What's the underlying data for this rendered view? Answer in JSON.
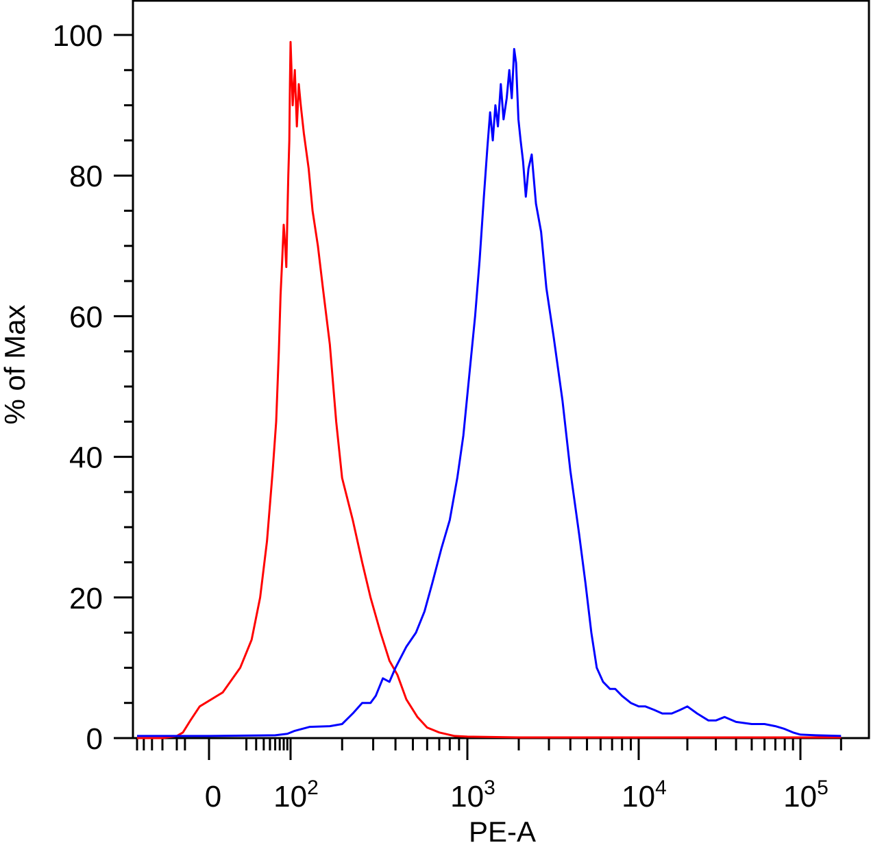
{
  "chart_data": {
    "type": "line",
    "title": "",
    "xlabel": "PE-A",
    "ylabel": "% of Max",
    "x_scale": "biexponential",
    "ylim": [
      0,
      100
    ],
    "y_ticks": [
      {
        "value": 0,
        "label": "0"
      },
      {
        "value": 20,
        "label": "20"
      },
      {
        "value": 40,
        "label": "40"
      },
      {
        "value": 60,
        "label": "60"
      },
      {
        "value": 80,
        "label": "80"
      },
      {
        "value": 100,
        "label": "100"
      }
    ],
    "x_ticks": [
      {
        "value": 0,
        "label": "0",
        "base": "0",
        "exp": ""
      },
      {
        "value": 100,
        "label": "10^2",
        "base": "10",
        "exp": "2"
      },
      {
        "value": 1000,
        "label": "10^3",
        "base": "10",
        "exp": "3"
      },
      {
        "value": 10000,
        "label": "10^4",
        "base": "10",
        "exp": "4"
      },
      {
        "value": 100000,
        "label": "10^5",
        "base": "10",
        "exp": "5"
      }
    ],
    "grid": false,
    "series": [
      {
        "color": "#ff0000",
        "points": [
          [
            -300,
            0
          ],
          [
            -150,
            0
          ],
          [
            -100,
            0.3
          ],
          [
            -60,
            0.8
          ],
          [
            -30,
            2.5
          ],
          [
            -10,
            4.5
          ],
          [
            5,
            6.5
          ],
          [
            15,
            10
          ],
          [
            25,
            14
          ],
          [
            35,
            20
          ],
          [
            45,
            28
          ],
          [
            55,
            38
          ],
          [
            62,
            45
          ],
          [
            68,
            55
          ],
          [
            72,
            63
          ],
          [
            76,
            68
          ],
          [
            80,
            73
          ],
          [
            84,
            70
          ],
          [
            87,
            67
          ],
          [
            90,
            74
          ],
          [
            93,
            80
          ],
          [
            96,
            85
          ],
          [
            98,
            93
          ],
          [
            100,
            99
          ],
          [
            103,
            90
          ],
          [
            106,
            95
          ],
          [
            109,
            87
          ],
          [
            112,
            93
          ],
          [
            115,
            90
          ],
          [
            120,
            86
          ],
          [
            128,
            81
          ],
          [
            135,
            75
          ],
          [
            145,
            70
          ],
          [
            155,
            64
          ],
          [
            170,
            56
          ],
          [
            185,
            45
          ],
          [
            200,
            37
          ],
          [
            230,
            31
          ],
          [
            260,
            25
          ],
          [
            290,
            20
          ],
          [
            330,
            15
          ],
          [
            370,
            11
          ],
          [
            410,
            9
          ],
          [
            460,
            5.5
          ],
          [
            530,
            3
          ],
          [
            600,
            1.5
          ],
          [
            700,
            0.8
          ],
          [
            850,
            0.3
          ],
          [
            1000,
            0.2
          ],
          [
            2000,
            0.1
          ],
          [
            10000,
            0.1
          ],
          [
            100000,
            0.1
          ],
          [
            200000,
            0.1
          ]
        ]
      },
      {
        "color": "#0000ff",
        "points": [
          [
            -300,
            0.3
          ],
          [
            -150,
            0.3
          ],
          [
            0,
            0.3
          ],
          [
            60,
            0.4
          ],
          [
            90,
            0.6
          ],
          [
            105,
            1
          ],
          [
            130,
            1.6
          ],
          [
            170,
            1.7
          ],
          [
            200,
            2
          ],
          [
            230,
            3.5
          ],
          [
            260,
            5
          ],
          [
            290,
            5
          ],
          [
            310,
            6
          ],
          [
            340,
            8.5
          ],
          [
            370,
            8
          ],
          [
            400,
            10
          ],
          [
            460,
            13
          ],
          [
            520,
            15
          ],
          [
            580,
            18
          ],
          [
            640,
            22
          ],
          [
            720,
            27
          ],
          [
            800,
            31
          ],
          [
            880,
            37
          ],
          [
            950,
            43
          ],
          [
            1030,
            52
          ],
          [
            1110,
            60
          ],
          [
            1180,
            68
          ],
          [
            1250,
            77
          ],
          [
            1310,
            84
          ],
          [
            1360,
            89
          ],
          [
            1410,
            85
          ],
          [
            1460,
            90
          ],
          [
            1510,
            87
          ],
          [
            1570,
            93
          ],
          [
            1630,
            88
          ],
          [
            1700,
            91
          ],
          [
            1760,
            95
          ],
          [
            1820,
            91
          ],
          [
            1880,
            98
          ],
          [
            1930,
            96
          ],
          [
            1990,
            88
          ],
          [
            2050,
            85
          ],
          [
            2120,
            82
          ],
          [
            2200,
            77
          ],
          [
            2280,
            81
          ],
          [
            2380,
            83
          ],
          [
            2520,
            76
          ],
          [
            2700,
            72
          ],
          [
            2900,
            64
          ],
          [
            3200,
            57
          ],
          [
            3600,
            48
          ],
          [
            4000,
            38
          ],
          [
            4500,
            29
          ],
          [
            4900,
            22
          ],
          [
            5300,
            15
          ],
          [
            5700,
            10
          ],
          [
            6200,
            8
          ],
          [
            6800,
            7
          ],
          [
            7300,
            7
          ],
          [
            8000,
            6
          ],
          [
            9000,
            5
          ],
          [
            10000,
            4.5
          ],
          [
            11000,
            4.5
          ],
          [
            12500,
            4
          ],
          [
            14000,
            3.5
          ],
          [
            16000,
            3.5
          ],
          [
            18000,
            4
          ],
          [
            20000,
            4.5
          ],
          [
            23000,
            3.5
          ],
          [
            27000,
            2.5
          ],
          [
            30000,
            2.5
          ],
          [
            34000,
            3
          ],
          [
            40000,
            2.3
          ],
          [
            50000,
            2
          ],
          [
            60000,
            2
          ],
          [
            70000,
            1.7
          ],
          [
            80000,
            1.3
          ],
          [
            90000,
            0.8
          ],
          [
            100000,
            0.5
          ],
          [
            130000,
            0.4
          ],
          [
            200000,
            0.3
          ]
        ]
      }
    ]
  }
}
